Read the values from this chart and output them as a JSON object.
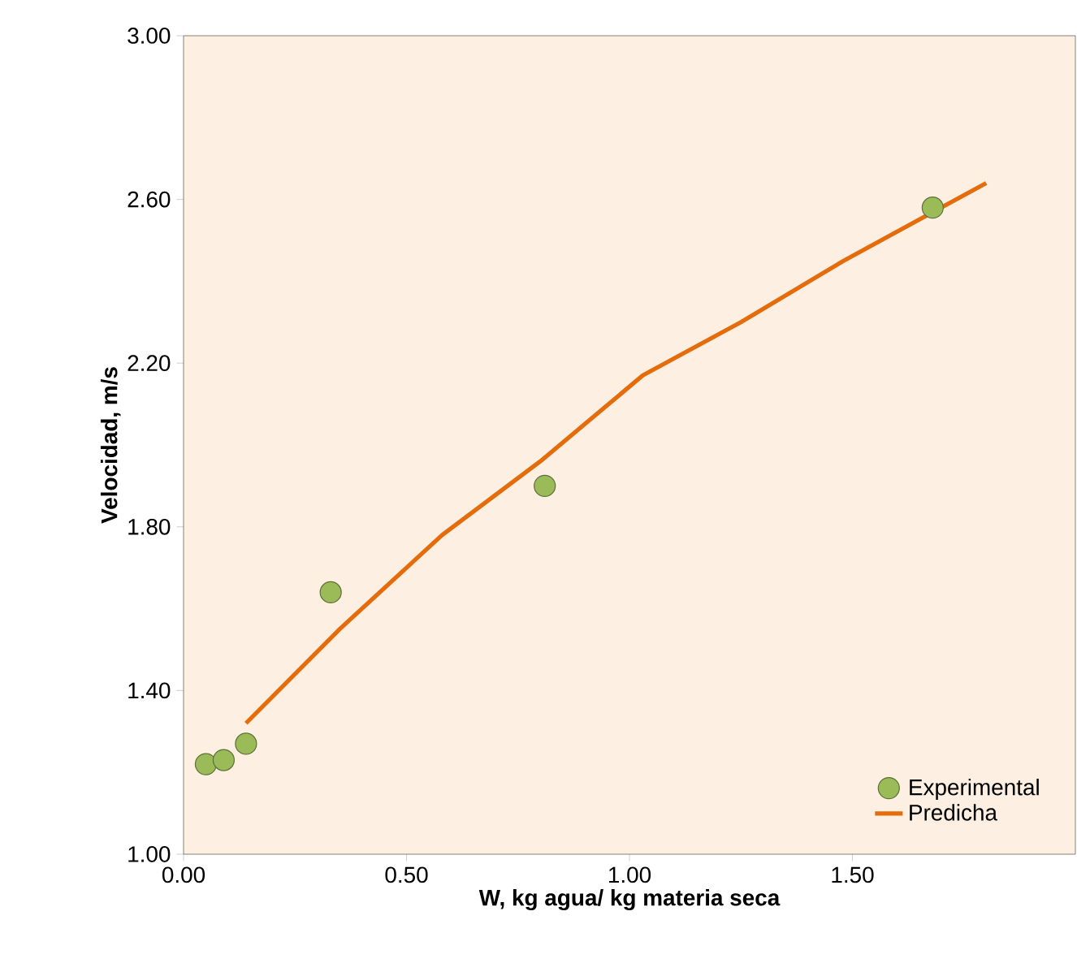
{
  "chart_data": {
    "type": "scatter",
    "xlabel": "W, kg agua/ kg materia seca",
    "ylabel": "Velocidad, m/s",
    "xlim": [
      0,
      2.0
    ],
    "ylim": [
      1.0,
      3.0
    ],
    "xticks": [
      {
        "value": 0,
        "label": "0.00"
      },
      {
        "value": 0.5,
        "label": "0.50"
      },
      {
        "value": 1.0,
        "label": "1.00"
      },
      {
        "value": 1.5,
        "label": "1.50"
      }
    ],
    "yticks": [
      {
        "value": 1.0,
        "label": "1.00"
      },
      {
        "value": 1.4,
        "label": "1.40"
      },
      {
        "value": 1.8,
        "label": "1.80"
      },
      {
        "value": 2.2,
        "label": "2.20"
      },
      {
        "value": 2.6,
        "label": "2.60"
      },
      {
        "value": 3.0,
        "label": "3.00"
      }
    ],
    "grid": false,
    "legend": "bottom right",
    "series": [
      {
        "name": "Experimental",
        "marker": "circle",
        "color": "#9bbb59",
        "x": [
          0.05,
          0.09,
          0.14,
          0.33,
          0.81,
          1.68
        ],
        "values": [
          1.22,
          1.23,
          1.27,
          1.64,
          1.9,
          2.58
        ]
      },
      {
        "name": "Predicha",
        "type": "line",
        "marker": "none",
        "color": "#e46c0a",
        "x": [
          0.14,
          0.35,
          0.58,
          0.8,
          1.03,
          1.25,
          1.48,
          1.8
        ],
        "values": [
          1.32,
          1.55,
          1.78,
          1.96,
          2.17,
          2.3,
          2.45,
          2.64
        ]
      }
    ]
  }
}
